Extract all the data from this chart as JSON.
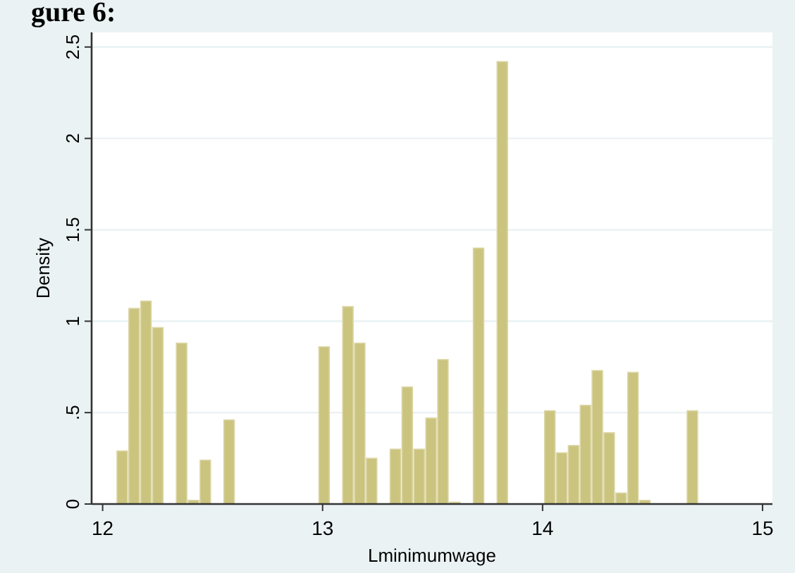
{
  "chart_data": {
    "type": "histogram",
    "title": "gure 6:",
    "xlabel": "Lminimumwage",
    "ylabel": "Density",
    "color": "#cbc47f",
    "bins": [
      12.062,
      12.116,
      12.17,
      12.224,
      12.278,
      12.332,
      12.386,
      12.44,
      12.494,
      12.548,
      12.602,
      12.656,
      12.71,
      12.764,
      12.818,
      12.872,
      12.926,
      12.98,
      13.034,
      13.088,
      13.142,
      13.196,
      13.25,
      13.304,
      13.358,
      13.412,
      13.466,
      13.52,
      13.574,
      13.628,
      13.682,
      13.736,
      13.79,
      13.844,
      13.898,
      13.952,
      14.006,
      14.06,
      14.114,
      14.168,
      14.222,
      14.276,
      14.33,
      14.384,
      14.438,
      14.492,
      14.546,
      14.6,
      14.654,
      14.708
    ],
    "values": [
      0.29,
      1.07,
      1.11,
      0.965,
      0,
      0.88,
      0.02,
      0.24,
      0,
      0.46,
      0,
      0,
      0,
      0,
      0,
      0,
      0,
      0.86,
      0,
      1.08,
      0.88,
      0.25,
      0,
      0.3,
      0.64,
      0.3,
      0.47,
      0.79,
      0.01,
      0,
      1.4,
      0,
      2.42,
      0,
      0,
      0,
      0.51,
      0.28,
      0.32,
      0.54,
      0.73,
      0.39,
      0.06,
      0.72,
      0.02,
      0,
      0,
      0,
      0.51
    ],
    "xlim": [
      11.95,
      15.045
    ],
    "xticks": [
      12,
      13,
      14,
      15
    ],
    "ylim": [
      0,
      2.58
    ],
    "yticks": [
      0,
      {
        "value": 0.5,
        "label": ".5"
      },
      1,
      1.5,
      2,
      2.5
    ],
    "grid": "y"
  }
}
